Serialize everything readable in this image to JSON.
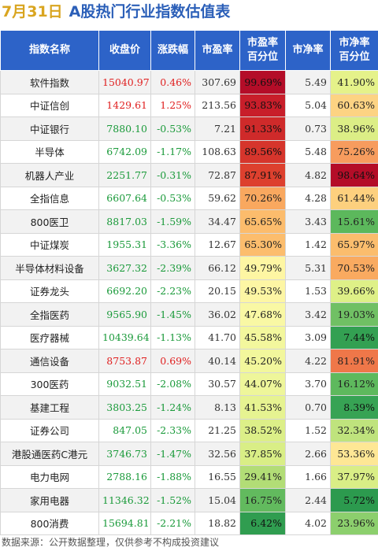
{
  "title": {
    "date": "7月31日",
    "text": "A股热门行业指数估值表"
  },
  "columns": [
    "指数名称",
    "收盘价",
    "涨跌幅",
    "市盈率",
    "市盈率\n百分位",
    "市净率",
    "市净率\n百分位"
  ],
  "rows": [
    {
      "name": "软件指数",
      "close": "15040.97",
      "change": "0.46%",
      "pe": "307.69",
      "pe_pct": "99.69%",
      "pb": "5.49",
      "pb_pct": "41.90%",
      "dir": "up",
      "pe_color": "#b40d28",
      "pb_color": "#e5f28a"
    },
    {
      "name": "中证信创",
      "close": "1429.61",
      "change": "1.25%",
      "pe": "213.56",
      "pe_pct": "93.83%",
      "pb": "5.04",
      "pb_pct": "60.63%",
      "dir": "up",
      "pe_color": "#c81e2a",
      "pb_color": "#fdd383"
    },
    {
      "name": "中证银行",
      "close": "7880.10",
      "change": "-0.53%",
      "pe": "7.21",
      "pe_pct": "91.33%",
      "pb": "0.73",
      "pb_pct": "38.96%",
      "dir": "down",
      "pe_color": "#cf2a2a",
      "pb_color": "#dcee86"
    },
    {
      "name": "半导体",
      "close": "6742.09",
      "change": "-1.17%",
      "pe": "108.63",
      "pe_pct": "89.56%",
      "pb": "5.48",
      "pb_pct": "75.26%",
      "dir": "down",
      "pe_color": "#d6352c",
      "pb_color": "#f79c5e"
    },
    {
      "name": "机器人产业",
      "close": "2251.77",
      "change": "-0.31%",
      "pe": "72.87",
      "pe_pct": "87.91%",
      "pb": "4.82",
      "pb_pct": "98.64%",
      "dir": "down",
      "pe_color": "#dd402e",
      "pb_color": "#b40d28"
    },
    {
      "name": "全指信息",
      "close": "6607.64",
      "change": "-0.53%",
      "pe": "59.62",
      "pe_pct": "70.26%",
      "pb": "4.28",
      "pb_pct": "61.44%",
      "dir": "down",
      "pe_color": "#f9a85f",
      "pb_color": "#fdd07e"
    },
    {
      "name": "800医卫",
      "close": "8817.03",
      "change": "-1.59%",
      "pe": "34.47",
      "pe_pct": "65.65%",
      "pb": "3.43",
      "pb_pct": "15.61%",
      "dir": "down",
      "pe_color": "#fcbc6c",
      "pb_color": "#5cb85c"
    },
    {
      "name": "中证煤炭",
      "close": "1955.31",
      "change": "-3.36%",
      "pe": "12.67",
      "pe_pct": "65.30%",
      "pb": "1.42",
      "pb_pct": "65.97%",
      "dir": "down",
      "pe_color": "#fcbd6d",
      "pb_color": "#fbbd6d"
    },
    {
      "name": "半导体材料设备",
      "close": "3627.32",
      "change": "-2.39%",
      "pe": "66.12",
      "pe_pct": "49.79%",
      "pb": "5.31",
      "pb_pct": "70.53%",
      "dir": "down",
      "pe_color": "#fef6a3",
      "pb_color": "#f9aa60"
    },
    {
      "name": "证券龙头",
      "close": "6692.20",
      "change": "-2.23%",
      "pe": "20.15",
      "pe_pct": "49.53%",
      "pb": "1.53",
      "pb_pct": "39.66%",
      "dir": "down",
      "pe_color": "#fdf6a4",
      "pb_color": "#def087"
    },
    {
      "name": "全指医药",
      "close": "9565.90",
      "change": "-1.45%",
      "pe": "36.02",
      "pe_pct": "47.68%",
      "pb": "3.42",
      "pb_pct": "19.03%",
      "dir": "down",
      "pe_color": "#f9f8a4",
      "pb_color": "#70c064"
    },
    {
      "name": "医疗器械",
      "close": "10439.64",
      "change": "-1.13%",
      "pe": "41.70",
      "pe_pct": "45.58%",
      "pb": "3.09",
      "pb_pct": "7.44%",
      "dir": "down",
      "pe_color": "#f3f79d",
      "pb_color": "#33a052"
    },
    {
      "name": "通信设备",
      "close": "8753.87",
      "change": "0.69%",
      "pe": "40.14",
      "pe_pct": "45.20%",
      "pb": "4.22",
      "pb_pct": "81.91%",
      "dir": "up",
      "pe_color": "#f2f79c",
      "pb_color": "#ef7749"
    },
    {
      "name": "300医药",
      "close": "9032.51",
      "change": "-2.08%",
      "pe": "30.57",
      "pe_pct": "44.07%",
      "pb": "3.70",
      "pb_pct": "16.12%",
      "dir": "down",
      "pe_color": "#eef69a",
      "pb_color": "#5eb95d"
    },
    {
      "name": "基建工程",
      "close": "3803.25",
      "change": "-1.24%",
      "pe": "8.13",
      "pe_pct": "41.53%",
      "pb": "0.70",
      "pb_pct": "8.39%",
      "dir": "down",
      "pe_color": "#e6f391",
      "pb_color": "#37a354"
    },
    {
      "name": "证券公司",
      "close": "847.05",
      "change": "-2.33%",
      "pe": "21.25",
      "pe_pct": "38.52%",
      "pb": "1.52",
      "pb_pct": "32.34%",
      "dir": "down",
      "pe_color": "#dcef88",
      "pb_color": "#bfe37d"
    },
    {
      "name": "港股通医药C港元",
      "close": "3746.73",
      "change": "-1.47%",
      "pe": "32.56",
      "pe_pct": "37.85%",
      "pb": "2.66",
      "pb_pct": "53.36%",
      "dir": "down",
      "pe_color": "#d9ee86",
      "pb_color": "#fee795"
    },
    {
      "name": "电力电网",
      "close": "2788.16",
      "change": "-1.88%",
      "pe": "16.55",
      "pe_pct": "29.41%",
      "pb": "1.66",
      "pb_pct": "37.97%",
      "dir": "down",
      "pe_color": "#b2dd76",
      "pb_color": "#d9ee86"
    },
    {
      "name": "家用电器",
      "close": "11346.32",
      "change": "-1.52%",
      "pe": "15.04",
      "pe_pct": "16.75%",
      "pb": "2.44",
      "pb_pct": "5.72%",
      "dir": "down",
      "pe_color": "#62ba5e",
      "pb_color": "#2c9a4e"
    },
    {
      "name": "800消费",
      "close": "15694.81",
      "change": "-2.21%",
      "pe": "18.82",
      "pe_pct": "6.42%",
      "pb": "4.02",
      "pb_pct": "23.96%",
      "dir": "down",
      "pe_color": "#309d50",
      "pb_color": "#8ccf6d"
    }
  ],
  "footer": "数据来源：公开数据整理，仅供参考不构成投资建议"
}
